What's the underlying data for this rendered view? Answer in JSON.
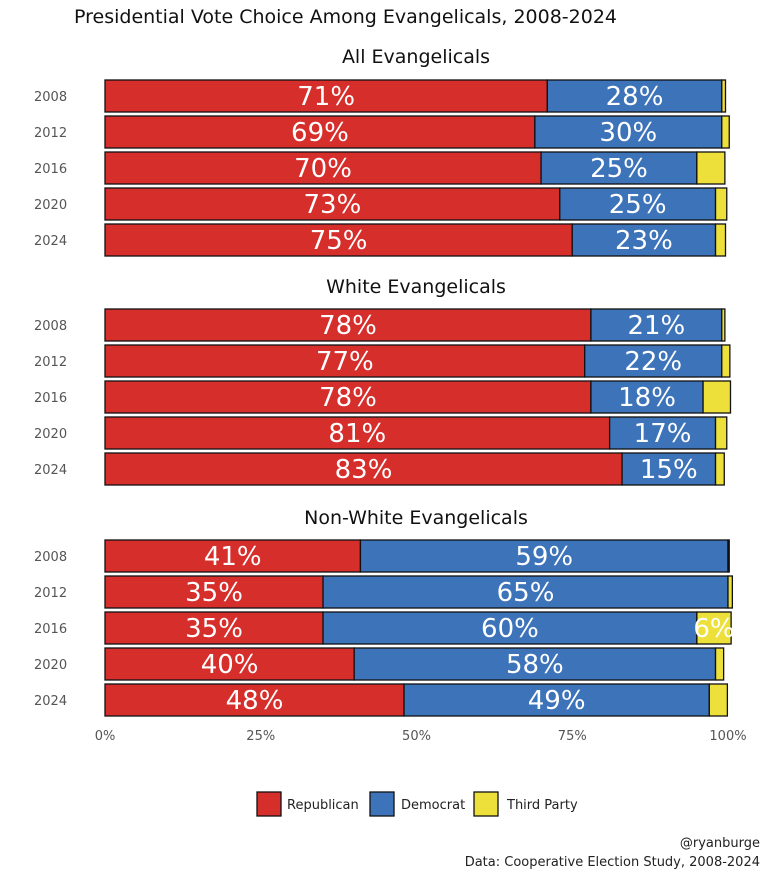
{
  "chart_data": {
    "type": "bar",
    "orientation": "horizontal-stacked",
    "title": "Presidential Vote Choice Among Evangelicals, 2008-2024",
    "xlim": [
      0,
      100
    ],
    "x_ticks": [
      "0%",
      "25%",
      "50%",
      "75%",
      "100%"
    ],
    "x_tick_values": [
      0,
      25,
      50,
      75,
      100
    ],
    "grid": false,
    "legend_position": "bottom",
    "colors": {
      "Republican": "#d62e2b",
      "Democrat": "#3d73b9",
      "Third Party": "#ede03a"
    },
    "series_names": [
      "Republican",
      "Democrat",
      "Third Party"
    ],
    "panels": [
      {
        "title": "All Evangelicals",
        "categories": [
          "2008",
          "2012",
          "2016",
          "2020",
          "2024"
        ],
        "series": [
          {
            "name": "Republican",
            "values": [
              71,
              69,
              70,
              73,
              75
            ],
            "labels": [
              "71%",
              "69%",
              "70%",
              "73%",
              "75%"
            ]
          },
          {
            "name": "Democrat",
            "values": [
              28,
              30,
              25,
              25,
              23
            ],
            "labels": [
              "28%",
              "30%",
              "25%",
              "25%",
              "23%"
            ]
          },
          {
            "name": "Third Party",
            "values": [
              0.6,
              1.2,
              4.5,
              1.8,
              1.6
            ],
            "labels": [
              "",
              "",
              "",
              "",
              ""
            ]
          }
        ]
      },
      {
        "title": "White Evangelicals",
        "categories": [
          "2008",
          "2012",
          "2016",
          "2020",
          "2024"
        ],
        "series": [
          {
            "name": "Republican",
            "values": [
              78,
              77,
              78,
              81,
              83
            ],
            "labels": [
              "78%",
              "77%",
              "78%",
              "81%",
              "83%"
            ]
          },
          {
            "name": "Democrat",
            "values": [
              21,
              22,
              18,
              17,
              15
            ],
            "labels": [
              "21%",
              "22%",
              "18%",
              "17%",
              "15%"
            ]
          },
          {
            "name": "Third Party",
            "values": [
              0.5,
              1.3,
              4.4,
              1.8,
              1.4
            ],
            "labels": [
              "",
              "",
              "",
              "",
              ""
            ]
          }
        ]
      },
      {
        "title": "Non-White Evangelicals",
        "categories": [
          "2008",
          "2012",
          "2016",
          "2020",
          "2024"
        ],
        "series": [
          {
            "name": "Republican",
            "values": [
              41,
              35,
              35,
              40,
              48
            ],
            "labels": [
              "41%",
              "35%",
              "35%",
              "40%",
              "48%"
            ]
          },
          {
            "name": "Democrat",
            "values": [
              59,
              65,
              60,
              58,
              49
            ],
            "labels": [
              "59%",
              "65%",
              "60%",
              "58%",
              "49%"
            ]
          },
          {
            "name": "Third Party",
            "values": [
              0.2,
              0.7,
              5.5,
              1.3,
              2.9
            ],
            "labels": [
              "",
              "",
              "6%",
              "",
              ""
            ]
          }
        ]
      }
    ]
  },
  "caption": {
    "handle": "@ryanburge",
    "source": "Data: Cooperative Election Study, 2008-2024"
  }
}
